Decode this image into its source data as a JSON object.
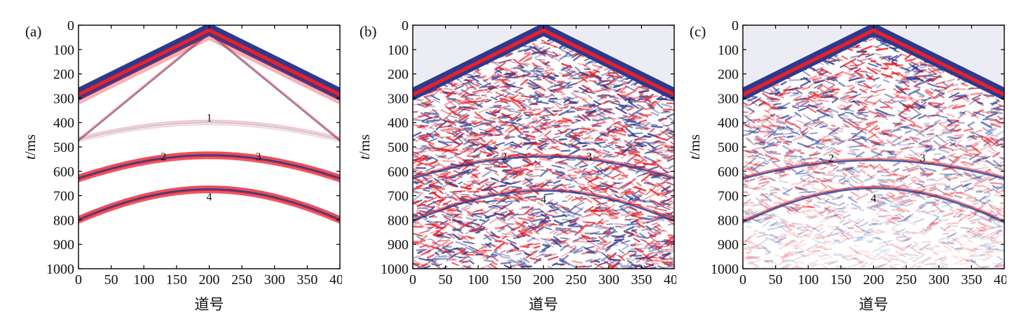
{
  "chart_data": [
    {
      "type": "heatmap",
      "panel_label": "(a)",
      "ylabel": "t/ms",
      "xlabel": "道号",
      "xlim": [
        0,
        400
      ],
      "ylim": [
        0,
        1000
      ],
      "x_ticks": [
        "0",
        "50",
        "100",
        "150",
        "200",
        "250",
        "300",
        "350",
        "400"
      ],
      "y_ticks": [
        "0",
        "100",
        "200",
        "300",
        "400",
        "500",
        "600",
        "700",
        "800",
        "900",
        "1000"
      ],
      "y_inverted": true,
      "noise": "none",
      "direct_wave": {
        "apex_trace": 200,
        "apex_time_ms": 5,
        "edge_time_ms": 270
      },
      "refraction": {
        "apex_trace": 200,
        "apex_time_ms": 30,
        "edge_time_ms": 470
      },
      "events": [
        {
          "label": "1",
          "apex_trace": 200,
          "apex_time_ms": 400,
          "edge_time_ms": 470,
          "label_pos": [
            200,
            395
          ]
        },
        {
          "label": "2",
          "apex_trace": 200,
          "apex_time_ms": 535,
          "edge_time_ms": 630,
          "label_pos": [
            130,
            555
          ]
        },
        {
          "label": "3",
          "apex_trace": 200,
          "apex_time_ms": 535,
          "edge_time_ms": 630,
          "label_pos": [
            275,
            555
          ]
        },
        {
          "label": "4",
          "apex_trace": 200,
          "apex_time_ms": 675,
          "edge_time_ms": 800,
          "label_pos": [
            200,
            720
          ]
        }
      ]
    },
    {
      "type": "heatmap",
      "panel_label": "(b)",
      "ylabel": "t/ms",
      "xlabel": "道号",
      "xlim": [
        0,
        400
      ],
      "ylim": [
        0,
        1000
      ],
      "x_ticks": [
        "0",
        "50",
        "100",
        "150",
        "200",
        "250",
        "300",
        "350",
        "400"
      ],
      "y_ticks": [
        "0",
        "100",
        "200",
        "300",
        "400",
        "500",
        "600",
        "700",
        "800",
        "900",
        "1000"
      ],
      "y_inverted": true,
      "noise": "strong",
      "direct_wave": {
        "apex_trace": 200,
        "apex_time_ms": 5,
        "edge_time_ms": 270
      },
      "events": [
        {
          "label": "2",
          "apex_trace": 200,
          "apex_time_ms": 540,
          "edge_time_ms": 630,
          "label_pos": [
            140,
            555
          ]
        },
        {
          "label": "3",
          "apex_trace": 200,
          "apex_time_ms": 540,
          "edge_time_ms": 630,
          "label_pos": [
            270,
            555
          ]
        },
        {
          "label": "4",
          "apex_trace": 200,
          "apex_time_ms": 680,
          "edge_time_ms": 805,
          "label_pos": [
            200,
            730
          ]
        }
      ]
    },
    {
      "type": "heatmap",
      "panel_label": "(c)",
      "ylabel": "t/ms",
      "xlabel": "道号",
      "xlim": [
        0,
        400
      ],
      "ylim": [
        0,
        1000
      ],
      "x_ticks": [
        "0",
        "50",
        "100",
        "150",
        "200",
        "250",
        "300",
        "350",
        "400"
      ],
      "y_ticks": [
        "0",
        "100",
        "200",
        "300",
        "400",
        "500",
        "600",
        "700",
        "800",
        "900",
        "1000"
      ],
      "y_inverted": true,
      "noise": "medium",
      "direct_wave": {
        "apex_trace": 200,
        "apex_time_ms": 5,
        "edge_time_ms": 270
      },
      "events": [
        {
          "label": "2",
          "apex_trace": 200,
          "apex_time_ms": 555,
          "edge_time_ms": 630,
          "label_pos": [
            135,
            560
          ]
        },
        {
          "label": "3",
          "apex_trace": 200,
          "apex_time_ms": 555,
          "edge_time_ms": 630,
          "label_pos": [
            275,
            560
          ]
        },
        {
          "label": "4",
          "apex_trace": 200,
          "apex_time_ms": 670,
          "edge_time_ms": 810,
          "label_pos": [
            200,
            725
          ]
        }
      ]
    }
  ],
  "colors": {
    "blue": "#2b3a8f",
    "red": "#e8202a",
    "white": "#ffffff",
    "bg_b": "#ececf4"
  }
}
